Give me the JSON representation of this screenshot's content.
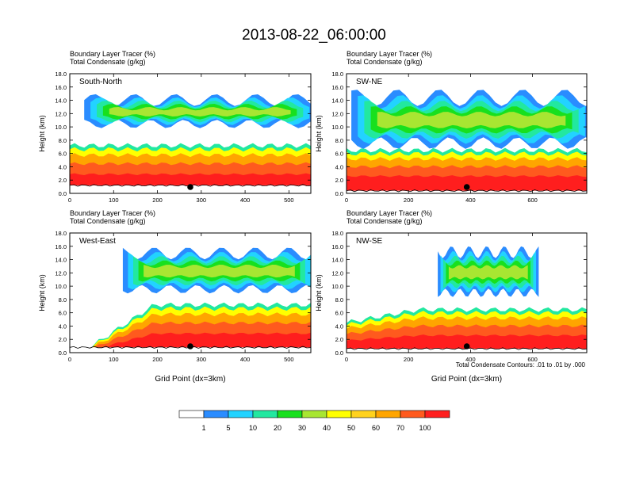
{
  "title": "2013-08-22_06:00:00",
  "footnote": "Total Condensate Contours: .01 to .01 by .000",
  "colorbar": {
    "colors": [
      "#ffffff",
      "#2a8cff",
      "#22d3ff",
      "#22e8a0",
      "#18e01e",
      "#a8e632",
      "#ffff00",
      "#ffd21e",
      "#ffa500",
      "#ff5a1e",
      "#ff1e1e"
    ],
    "labels": [
      "1",
      "5",
      "10",
      "20",
      "30",
      "40",
      "50",
      "60",
      "70",
      "100"
    ]
  },
  "chart_data": [
    {
      "type": "heatmap",
      "panel_label": "South-North",
      "subtitle_lines": [
        "Boundary Layer Tracer    (%)",
        "Total Condensate    (g/kg)"
      ],
      "xlabel": "",
      "ylabel": "Height (km)",
      "xlim": [
        0,
        550
      ],
      "ylim": [
        0,
        18
      ],
      "x_ticks": [
        0,
        100,
        200,
        300,
        400,
        500
      ],
      "y_ticks": [
        0.0,
        2.0,
        4.0,
        6.0,
        8.0,
        10.0,
        12.0,
        14.0,
        16.0,
        18.0
      ],
      "marker_x": 275,
      "terrain_height": 1.2
    },
    {
      "type": "heatmap",
      "panel_label": "SW-NE",
      "subtitle_lines": [
        "Boundary Layer Tracer    (%)",
        "Total Condensate    (g/kg)"
      ],
      "xlabel": "",
      "ylabel": "Height (km)",
      "xlim": [
        0,
        775
      ],
      "ylim": [
        0,
        18
      ],
      "x_ticks": [
        0,
        200,
        400,
        600
      ],
      "y_ticks": [
        0.0,
        2.0,
        4.0,
        6.0,
        8.0,
        10.0,
        12.0,
        14.0,
        16.0,
        18.0
      ],
      "marker_x": 388,
      "terrain_height": 0.4
    },
    {
      "type": "heatmap",
      "panel_label": "West-East",
      "subtitle_lines": [
        "Boundary Layer Tracer    (%)",
        "Total Condensate    (g/kg)"
      ],
      "xlabel": "Grid Point (dx=3km)",
      "ylabel": "Height (km)",
      "xlim": [
        0,
        550
      ],
      "ylim": [
        0,
        18
      ],
      "x_ticks": [
        0,
        100,
        200,
        300,
        400,
        500
      ],
      "y_ticks": [
        0.0,
        2.0,
        4.0,
        6.0,
        8.0,
        10.0,
        12.0,
        14.0,
        16.0,
        18.0
      ],
      "marker_x": 275,
      "terrain_height": 0.8
    },
    {
      "type": "heatmap",
      "panel_label": "NW-SE",
      "subtitle_lines": [
        "Boundary Layer Tracer    (%)",
        "Total Condensate    (g/kg)"
      ],
      "xlabel": "Grid Point (dx=3km)",
      "ylabel": "Height (km)",
      "xlim": [
        0,
        775
      ],
      "ylim": [
        0,
        18
      ],
      "x_ticks": [
        0,
        200,
        400,
        600
      ],
      "y_ticks": [
        0.0,
        2.0,
        4.0,
        6.0,
        8.0,
        10.0,
        12.0,
        14.0,
        16.0,
        18.0
      ],
      "marker_x": 388,
      "terrain_height": 0.6
    }
  ]
}
